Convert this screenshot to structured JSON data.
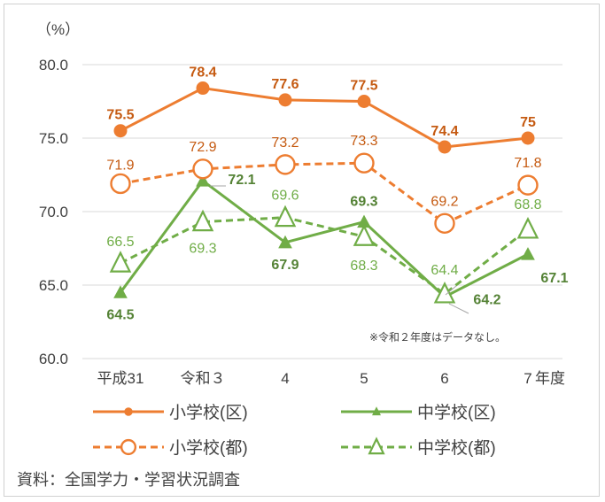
{
  "chart_data": {
    "type": "line",
    "y_unit_label": "（%）",
    "x_unit_label": "年度",
    "categories": [
      "平成31",
      "令和３",
      "4",
      "5",
      "6",
      "7"
    ],
    "ylim": [
      60.0,
      80.0
    ],
    "y_ticks": [
      "60.0",
      "65.0",
      "70.0",
      "75.0",
      "80.0"
    ],
    "grid": true,
    "legend_placement": "bottom",
    "series": [
      {
        "name": "小学校(区)",
        "color": "#ED7D31",
        "dashed": false,
        "marker": "filled-circle",
        "values": [
          75.5,
          78.4,
          77.6,
          77.5,
          74.4,
          75.0
        ],
        "labels": [
          "75.5",
          "78.4",
          "77.6",
          "77.5",
          "74.4",
          "75"
        ]
      },
      {
        "name": "中学校(区)",
        "color": "#70AD47",
        "dashed": false,
        "marker": "filled-triangle",
        "values": [
          64.5,
          72.1,
          67.9,
          69.3,
          64.2,
          67.1
        ],
        "labels": [
          "64.5",
          "72.1",
          "67.9",
          "69.3",
          "64.2",
          "67.1"
        ]
      },
      {
        "name": "小学校(都)",
        "color": "#ED7D31",
        "dashed": true,
        "marker": "open-circle",
        "values": [
          71.9,
          72.9,
          73.2,
          73.3,
          69.2,
          71.8
        ],
        "labels": [
          "71.9",
          "72.9",
          "73.2",
          "73.3",
          "69.2",
          "71.8"
        ]
      },
      {
        "name": "中学校(都)",
        "color": "#70AD47",
        "dashed": true,
        "marker": "open-triangle",
        "values": [
          66.5,
          69.3,
          69.6,
          68.3,
          64.4,
          68.8
        ],
        "labels": [
          "66.5",
          "69.3",
          "69.6",
          "68.3",
          "64.4",
          "68.8"
        ]
      }
    ],
    "note": "※令和２年度はデータなし。",
    "source": "資料：全国学力・学習状況調査"
  }
}
